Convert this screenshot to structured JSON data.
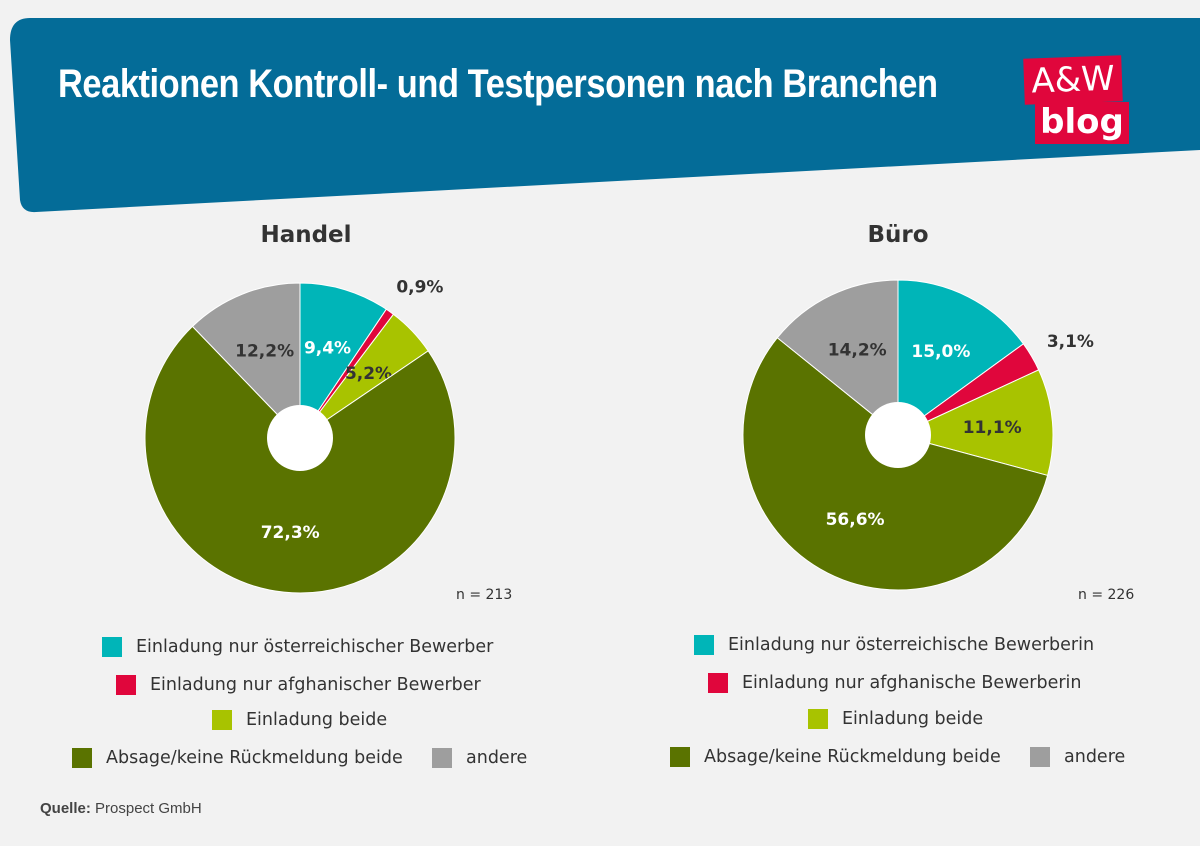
{
  "header": {
    "title": "Reaktionen Kontroll- und Testpersonen nach Branchen",
    "logo_top": "A&W",
    "logo_bottom": "blog",
    "color": "#046c98",
    "logo_color": "#e0063c"
  },
  "colors": {
    "teal": "#00b5b8",
    "red": "#e0063c",
    "lime": "#a8c300",
    "olive": "#5a7300",
    "grey": "#9e9e9e"
  },
  "chart_data": [
    {
      "type": "pie",
      "title": "Handel",
      "note": "n = 213",
      "categories": [
        "Einladung nur österreichischer Bewerber",
        "Einladung nur afghanischer Bewerber",
        "Einladung beide",
        "Absage/keine Rückmeldung beide",
        "andere"
      ],
      "values": [
        9.4,
        0.9,
        5.2,
        72.3,
        12.2
      ],
      "labels": [
        "9,4%",
        "0,9%",
        "5,2%",
        "72,3%",
        "12,2%"
      ]
    },
    {
      "type": "pie",
      "title": "Büro",
      "note": "n = 226",
      "categories": [
        "Einladung nur österreichische Bewerberin",
        "Einladung nur afghanische Bewerberin",
        "Einladung beide",
        "Absage/keine Rückmeldung beide",
        "andere"
      ],
      "values": [
        15.0,
        3.1,
        11.1,
        56.6,
        14.2
      ],
      "labels": [
        "15,0%",
        "3,1%",
        "11,1%",
        "56,6%",
        "14,2%"
      ]
    }
  ],
  "source": {
    "label": "Quelle:",
    "value": "Prospect GmbH"
  }
}
